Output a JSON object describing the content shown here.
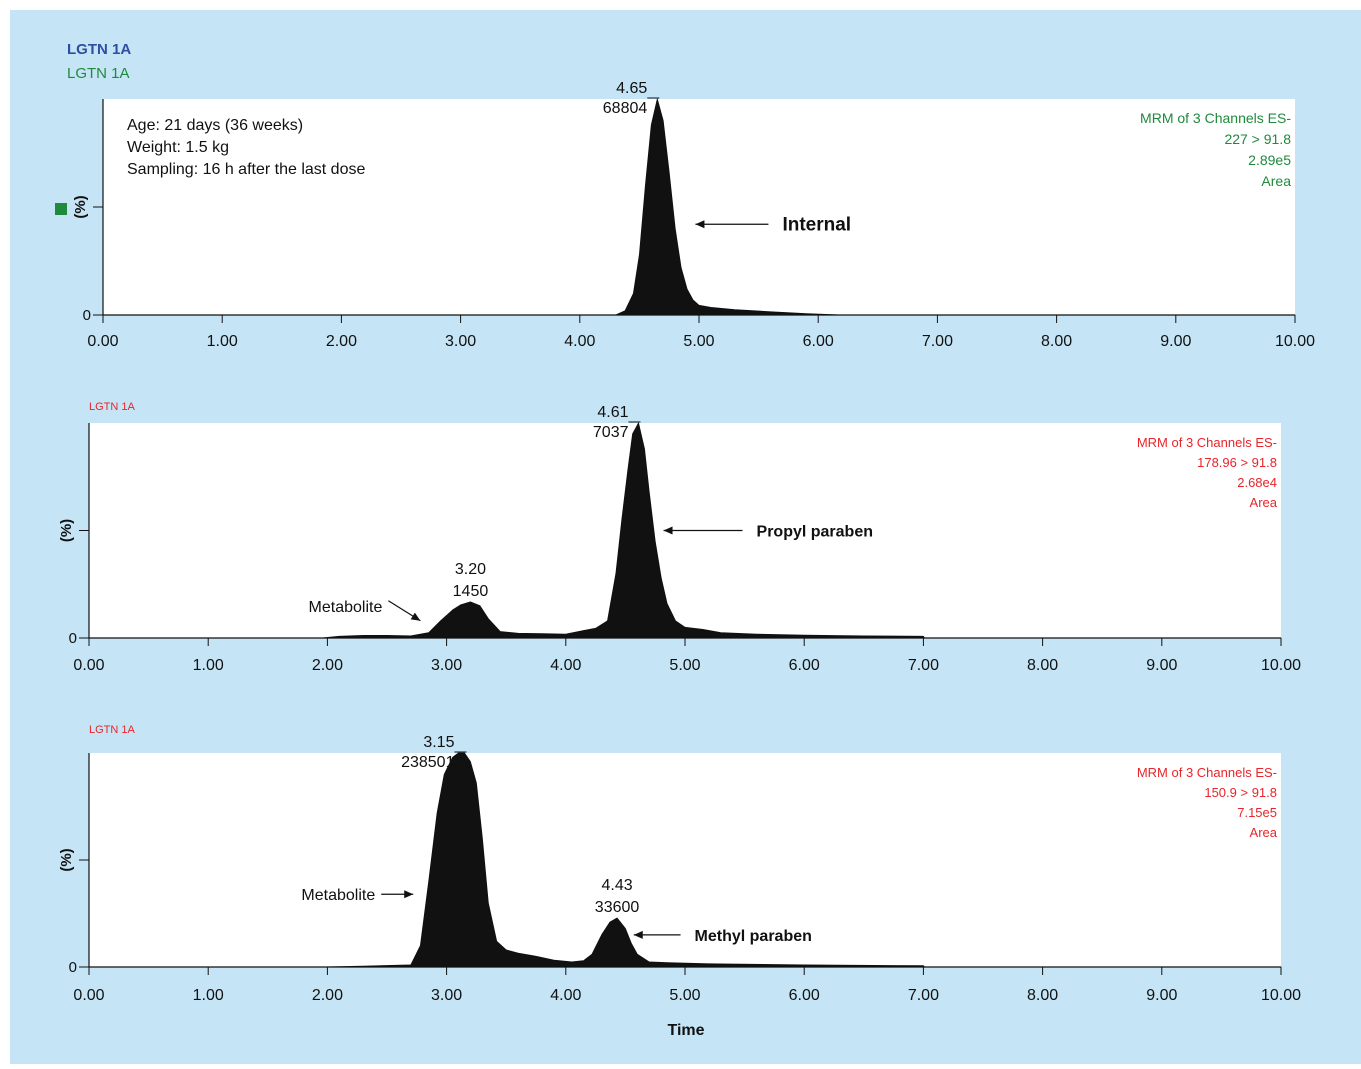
{
  "figure": {
    "header_bold": "LGTN 1A",
    "time_label": "Time",
    "colors": {
      "background": "#c5e5f6",
      "header_blue": "#2e4fa0",
      "green": "#1f8a3c",
      "red": "#e8252b",
      "peak_fill": "#111111"
    }
  },
  "chart_data": [
    {
      "type": "area",
      "sample_label": "LGTN 1A",
      "info_lines": [
        "Age: 21 days (36 weeks)",
        "Weight: 1.5 kg",
        "Sampling: 16 h after the last dose"
      ],
      "channel_lines": [
        "MRM of 3 Channels ES-",
        "227 > 91.8",
        "2.89e5",
        "Area"
      ],
      "ylabel": "(%)",
      "y_ticks": [
        0
      ],
      "xlim": [
        0,
        10
      ],
      "x_ticks": [
        "0.00",
        "1.00",
        "2.00",
        "3.00",
        "4.00",
        "5.00",
        "6.00",
        "7.00",
        "8.00",
        "9.00",
        "10.00"
      ],
      "x": [
        0,
        4.3,
        4.38,
        4.45,
        4.5,
        4.55,
        4.6,
        4.65,
        4.7,
        4.75,
        4.8,
        4.85,
        4.9,
        4.95,
        5.0,
        5.1,
        5.3,
        5.6,
        5.9,
        6.2,
        10
      ],
      "y": [
        0,
        0,
        2,
        10,
        28,
        60,
        88,
        100,
        90,
        66,
        40,
        22,
        12,
        7,
        4.5,
        3.5,
        2.5,
        1.5,
        0.6,
        0,
        0
      ],
      "peaks": [
        {
          "rt": "4.65",
          "area": "68804",
          "x": 4.65,
          "y": 100
        }
      ],
      "annotations": [
        {
          "text": "Internal",
          "x": 4.97,
          "y": 42,
          "text_x": 5.7
        }
      ]
    },
    {
      "type": "area",
      "sample_label": "LGTN 1A",
      "channel_lines": [
        "MRM of 3 Channels ES-",
        "178.96 > 91.8",
        "2.68e4",
        "Area"
      ],
      "ylabel": "(%)",
      "y_ticks": [
        0
      ],
      "xlim": [
        0,
        10
      ],
      "x_ticks": [
        "0.00",
        "1.00",
        "2.00",
        "3.00",
        "4.00",
        "5.00",
        "6.00",
        "7.00",
        "8.00",
        "9.00",
        "10.00"
      ],
      "x": [
        0,
        1.95,
        2.1,
        2.3,
        2.5,
        2.7,
        2.85,
        2.95,
        3.05,
        3.12,
        3.2,
        3.28,
        3.35,
        3.45,
        3.6,
        3.8,
        4.0,
        4.15,
        4.25,
        4.35,
        4.42,
        4.47,
        4.52,
        4.56,
        4.61,
        4.66,
        4.7,
        4.75,
        4.8,
        4.85,
        4.92,
        5.0,
        5.15,
        5.3,
        5.6,
        6.0,
        6.5,
        7.0,
        7.01,
        10
      ],
      "y": [
        0,
        0,
        0.8,
        1.2,
        1.2,
        1.0,
        2.5,
        8,
        13,
        15.5,
        16.8,
        15,
        9,
        3,
        2.2,
        2.0,
        1.8,
        3.5,
        4.5,
        8,
        30,
        55,
        78,
        95,
        100,
        88,
        68,
        45,
        28,
        16,
        8,
        5,
        4,
        2.5,
        1.8,
        1.3,
        1.0,
        0.8,
        0,
        0
      ],
      "peaks": [
        {
          "rt": "3.20",
          "area": "1450",
          "x": 3.2,
          "y": 16.8
        },
        {
          "rt": "4.61",
          "area": "7037",
          "x": 4.61,
          "y": 100
        }
      ],
      "annotations": [
        {
          "text": "Metabolite",
          "x": 2.78,
          "y": 8,
          "text_x": 2.2,
          "text_y": 15,
          "align": "right"
        },
        {
          "text": "Propyl paraben",
          "x": 4.82,
          "y": 50,
          "text_x": 5.6,
          "align": "left"
        }
      ]
    },
    {
      "type": "area",
      "sample_label": "LGTN 1A",
      "channel_lines": [
        "MRM of 3 Channels ES-",
        "150.9 > 91.8",
        "7.15e5",
        "Area"
      ],
      "ylabel": "(%)",
      "y_ticks": [
        0
      ],
      "xlim": [
        0,
        10
      ],
      "x_ticks": [
        "0.00",
        "1.00",
        "2.00",
        "3.00",
        "4.00",
        "5.00",
        "6.00",
        "7.00",
        "8.00",
        "9.00",
        "10.00"
      ],
      "x": [
        0,
        1.95,
        2.3,
        2.7,
        2.78,
        2.85,
        2.92,
        2.98,
        3.05,
        3.1,
        3.15,
        3.2,
        3.25,
        3.3,
        3.35,
        3.42,
        3.5,
        3.6,
        3.75,
        3.9,
        4.05,
        4.15,
        4.22,
        4.3,
        4.37,
        4.43,
        4.5,
        4.55,
        4.6,
        4.7,
        4.85,
        5.2,
        6.0,
        7.0,
        7.01,
        10
      ],
      "y": [
        0,
        0,
        0.4,
        1.0,
        10,
        40,
        72,
        90,
        98,
        100,
        100,
        96,
        86,
        60,
        30,
        12,
        8,
        6.5,
        5,
        3.2,
        2.4,
        3,
        6,
        15,
        21,
        22.9,
        18,
        11,
        6,
        2.4,
        2,
        1.5,
        1,
        0.6,
        0,
        0
      ],
      "peaks": [
        {
          "rt": "3.15",
          "area": "238501",
          "x": 3.15,
          "y": 100
        },
        {
          "rt": "4.43",
          "area": "33600",
          "x": 4.43,
          "y": 22.9
        }
      ],
      "annotations": [
        {
          "text": "Metabolite",
          "x": 2.72,
          "y": 34,
          "text_x": 2.05,
          "align": "right"
        },
        {
          "text": "Methyl paraben",
          "x": 4.57,
          "y": 15,
          "text_x": 5.08,
          "align": "left"
        }
      ]
    }
  ]
}
